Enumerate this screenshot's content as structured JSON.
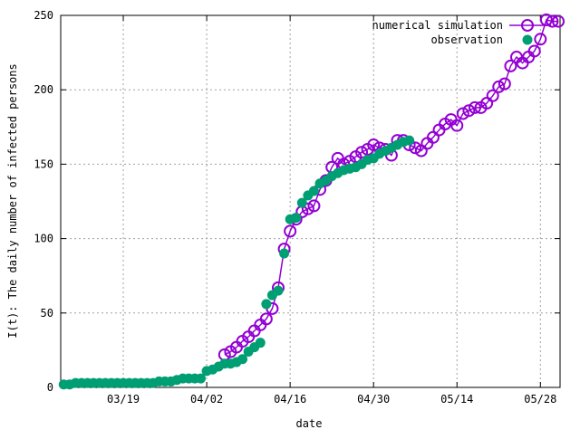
{
  "chart_data": {
    "type": "line",
    "title": "",
    "xlabel": "date",
    "ylabel": "I(t): The daily number of infected persons",
    "xlim": [
      "03/09",
      "05/31"
    ],
    "ylim": [
      0,
      250
    ],
    "grid": true,
    "legend_position": "top-right",
    "x_tick_labels": [
      "03/19",
      "04/02",
      "04/16",
      "04/30",
      "05/14",
      "05/28"
    ],
    "y_tick_labels": [
      0,
      50,
      100,
      150,
      200,
      250
    ],
    "series": [
      {
        "name": "numerical simulation",
        "color": "#9400d3",
        "style": "line+open-circles",
        "points": [
          [
            "04/05",
            22
          ],
          [
            "04/06",
            24
          ],
          [
            "04/07",
            27
          ],
          [
            "04/08",
            31
          ],
          [
            "04/09",
            34
          ],
          [
            "04/10",
            38
          ],
          [
            "04/11",
            42
          ],
          [
            "04/12",
            46
          ],
          [
            "04/13",
            53
          ],
          [
            "04/14",
            67
          ],
          [
            "04/15",
            93
          ],
          [
            "04/16",
            105
          ],
          [
            "04/17",
            113
          ],
          [
            "04/18",
            118
          ],
          [
            "04/19",
            120
          ],
          [
            "04/20",
            122
          ],
          [
            "04/21",
            133
          ],
          [
            "04/22",
            139
          ],
          [
            "04/23",
            148
          ],
          [
            "04/24",
            154
          ],
          [
            "04/25",
            150
          ],
          [
            "04/26",
            152
          ],
          [
            "04/27",
            155
          ],
          [
            "04/28",
            158
          ],
          [
            "04/29",
            160
          ],
          [
            "04/30",
            163
          ],
          [
            "05/01",
            161
          ],
          [
            "05/02",
            160
          ],
          [
            "05/03",
            156
          ],
          [
            "05/04",
            166
          ],
          [
            "05/05",
            166
          ],
          [
            "05/06",
            163
          ],
          [
            "05/07",
            161
          ],
          [
            "05/08",
            159
          ],
          [
            "05/09",
            164
          ],
          [
            "05/10",
            168
          ],
          [
            "05/11",
            173
          ],
          [
            "05/12",
            177
          ],
          [
            "05/13",
            180
          ],
          [
            "05/14",
            176
          ],
          [
            "05/15",
            184
          ],
          [
            "05/16",
            186
          ],
          [
            "05/17",
            188
          ],
          [
            "05/18",
            188
          ],
          [
            "05/19",
            191
          ],
          [
            "05/20",
            196
          ],
          [
            "05/21",
            202
          ],
          [
            "05/22",
            204
          ],
          [
            "05/23",
            216
          ],
          [
            "05/24",
            222
          ],
          [
            "05/25",
            218
          ],
          [
            "05/26",
            222
          ],
          [
            "05/27",
            226
          ],
          [
            "05/28",
            234
          ],
          [
            "05/29",
            247
          ],
          [
            "05/30",
            246
          ],
          [
            "05/31",
            246
          ]
        ]
      },
      {
        "name": "observation",
        "color": "#009e73",
        "style": "filled-circles",
        "points": [
          [
            "03/09",
            2
          ],
          [
            "03/10",
            2
          ],
          [
            "03/11",
            3
          ],
          [
            "03/12",
            3
          ],
          [
            "03/13",
            3
          ],
          [
            "03/14",
            3
          ],
          [
            "03/15",
            3
          ],
          [
            "03/16",
            3
          ],
          [
            "03/17",
            3
          ],
          [
            "03/18",
            3
          ],
          [
            "03/19",
            3
          ],
          [
            "03/20",
            3
          ],
          [
            "03/21",
            3
          ],
          [
            "03/22",
            3
          ],
          [
            "03/23",
            3
          ],
          [
            "03/24",
            3
          ],
          [
            "03/25",
            4
          ],
          [
            "03/26",
            4
          ],
          [
            "03/27",
            4
          ],
          [
            "03/28",
            5
          ],
          [
            "03/29",
            6
          ],
          [
            "03/30",
            6
          ],
          [
            "03/31",
            6
          ],
          [
            "04/01",
            6
          ],
          [
            "04/02",
            11
          ],
          [
            "04/03",
            12
          ],
          [
            "04/04",
            14
          ],
          [
            "04/05",
            16
          ],
          [
            "04/06",
            16
          ],
          [
            "04/07",
            17
          ],
          [
            "04/08",
            19
          ],
          [
            "04/09",
            24
          ],
          [
            "04/10",
            27
          ],
          [
            "04/11",
            30
          ],
          [
            "04/12",
            56
          ],
          [
            "04/13",
            62
          ],
          [
            "04/14",
            65
          ],
          [
            "04/15",
            90
          ],
          [
            "04/16",
            113
          ],
          [
            "04/17",
            114
          ],
          [
            "04/18",
            124
          ],
          [
            "04/19",
            129
          ],
          [
            "04/20",
            132
          ],
          [
            "04/21",
            137
          ],
          [
            "04/22",
            139
          ],
          [
            "04/23",
            142
          ],
          [
            "04/24",
            144
          ],
          [
            "04/25",
            146
          ],
          [
            "04/26",
            147
          ],
          [
            "04/27",
            148
          ],
          [
            "04/28",
            150
          ],
          [
            "04/29",
            153
          ],
          [
            "04/30",
            154
          ],
          [
            "05/01",
            157
          ],
          [
            "05/02",
            159
          ],
          [
            "05/03",
            161
          ],
          [
            "05/04",
            163
          ],
          [
            "05/05",
            165
          ],
          [
            "05/06",
            166
          ]
        ]
      }
    ]
  }
}
